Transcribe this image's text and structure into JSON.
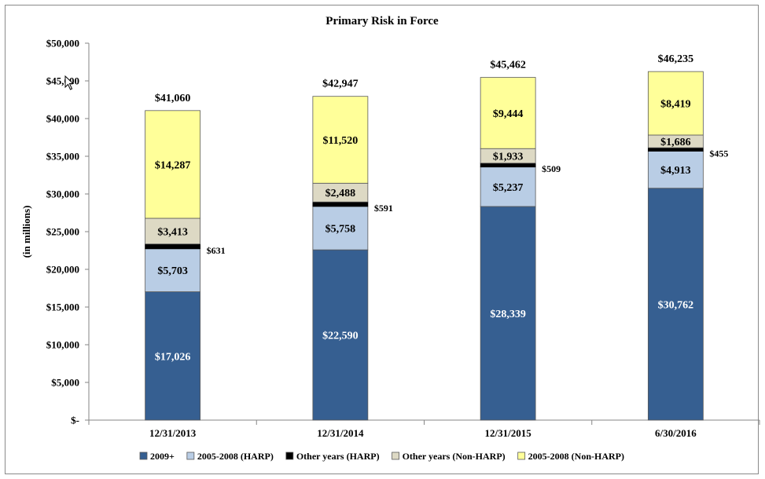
{
  "chart_data": {
    "type": "bar",
    "stacked": true,
    "title": "Primary Risk in Force",
    "ylabel": "(in millions)",
    "ylim": [
      0,
      50000
    ],
    "yticks": [
      0,
      5000,
      10000,
      15000,
      20000,
      25000,
      30000,
      35000,
      40000,
      45000,
      50000
    ],
    "ytick_labels": [
      "$-",
      "$5,000",
      "$10,000",
      "$15,000",
      "$20,000",
      "$25,000",
      "$30,000",
      "$35,000",
      "$40,000",
      "$45,000",
      "$50,000"
    ],
    "categories": [
      "12/31/2013",
      "12/31/2014",
      "12/31/2015",
      "6/30/2016"
    ],
    "totals": [
      41060,
      42947,
      45462,
      46235
    ],
    "total_labels": [
      "$41,060",
      "$42,947",
      "$45,462",
      "$46,235"
    ],
    "series": [
      {
        "name": "2009+",
        "color": "#365f91",
        "label_color": "#ffffff",
        "label_position": "inside",
        "values": [
          17026,
          22590,
          28339,
          30762
        ],
        "labels": [
          "$17,026",
          "$22,590",
          "$28,339",
          "$30,762"
        ]
      },
      {
        "name": "2005-2008 (HARP)",
        "color": "#b9cde5",
        "label_color": "#000000",
        "label_position": "inside",
        "values": [
          5703,
          5758,
          5237,
          4913
        ],
        "labels": [
          "$5,703",
          "$5,758",
          "$5,237",
          "$4,913"
        ]
      },
      {
        "name": "Other years (HARP)",
        "color": "#000000",
        "label_color": "#000000",
        "label_position": "outside",
        "values": [
          631,
          591,
          509,
          455
        ],
        "labels": [
          "$631",
          "$591",
          "$509",
          "$455"
        ]
      },
      {
        "name": "Other years (Non-HARP)",
        "color": "#ddd9c4",
        "label_color": "#000000",
        "label_position": "inside",
        "values": [
          3413,
          2488,
          1933,
          1686
        ],
        "labels": [
          "$3,413",
          "$2,488",
          "$1,933",
          "$1,686"
        ]
      },
      {
        "name": "2005-2008 (Non-HARP)",
        "color": "#ffff99",
        "label_color": "#000000",
        "label_position": "inside",
        "values": [
          14287,
          11520,
          9444,
          8419
        ],
        "labels": [
          "$14,287",
          "$11,520",
          "$9,444",
          "$8,419"
        ]
      }
    ],
    "legend_position": "bottom",
    "grid": false
  }
}
